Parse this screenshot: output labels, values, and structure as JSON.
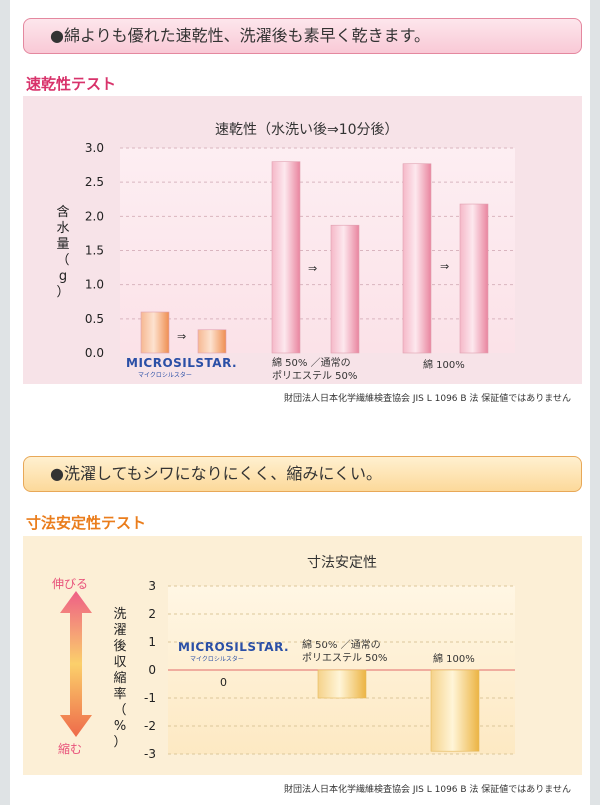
{
  "banner1": "●綿よりも優れた速乾性、洗濯後も素早く乾きます。",
  "section1_title": "速乾性テスト",
  "chart1_title": "速乾性（水洗い後⇒10分後）",
  "chart1_ylabel": "含水量（g）",
  "arrow_symbol": "⇒",
  "brand_name": "MICROSILSTAR.",
  "brand_kana": "マイクロシルスター",
  "note": "財団法人日本化学繊維検査協会 JIS L 1096 B 法 保証値ではありません",
  "banner2": "●洗濯してもシワになりにくく、縮みにくい。",
  "section2_title": "寸法安定性テスト",
  "chart2_title": "寸法安定性",
  "chart2_ylabel": "洗濯後収縮率（%）",
  "stretch_label": "伸びる",
  "shrink_label": "縮む",
  "colors": {
    "pink": "#f09ab4",
    "orange": "#f3a46e",
    "gold": "#f1c05a"
  },
  "chart_data": [
    {
      "type": "bar",
      "title": "速乾性（水洗い後⇒10分後）",
      "ylabel": "含水量（g）",
      "ylim": [
        0,
        3.0
      ],
      "yticks": [
        "0.0",
        "0.5",
        "1.0",
        "1.5",
        "2.0",
        "2.5",
        "3.0"
      ],
      "grid": true,
      "categories": [
        "MICROSILSTAR.",
        "綿 50% ／通常の ポリエステル 50%",
        "綿 100%"
      ],
      "series": [
        {
          "values": [
            0.6,
            2.8,
            2.77
          ]
        },
        {
          "values": [
            0.34,
            1.87,
            2.18
          ]
        }
      ]
    },
    {
      "type": "bar",
      "title": "寸法安定性",
      "ylabel": "洗濯後収縮率（%）",
      "ylim": [
        -3,
        3
      ],
      "yticks": [
        "3",
        "2",
        "1",
        "0",
        "-1",
        "-2",
        "-3"
      ],
      "categories": [
        "MICROSILSTAR.",
        "綿 50% ／通常の ポリエステル 50%",
        "綿 100%"
      ],
      "values": [
        0,
        -1.0,
        -2.9
      ],
      "value_labels": [
        "0"
      ]
    }
  ]
}
